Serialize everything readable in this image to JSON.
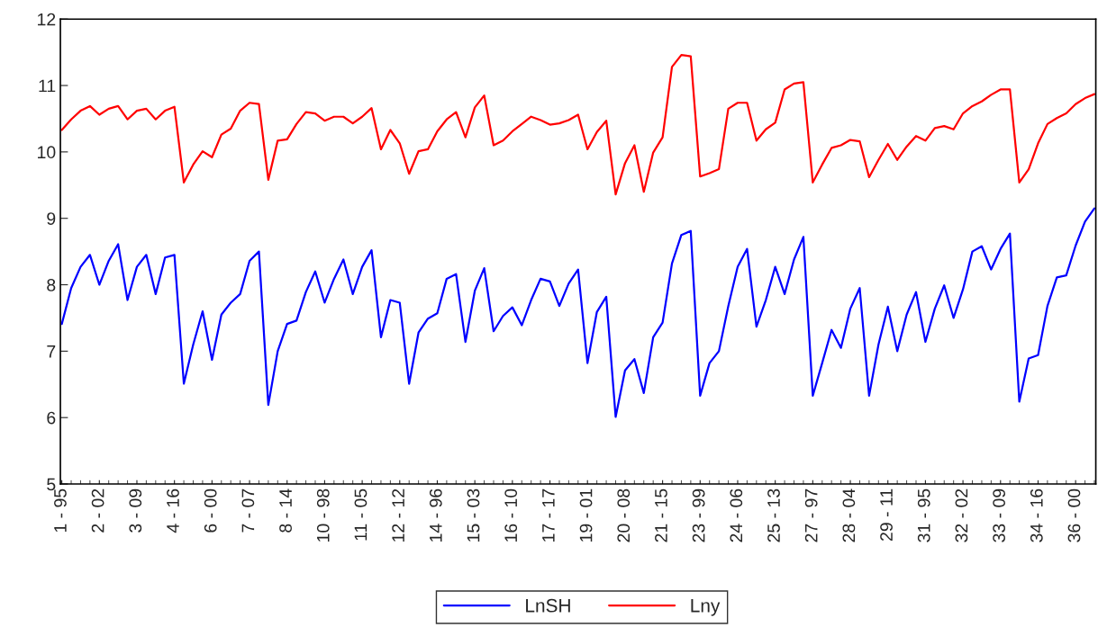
{
  "chart_data": {
    "type": "line",
    "categories": [
      "1 - 95",
      null,
      null,
      null,
      "2 - 02",
      null,
      null,
      null,
      "3 - 09",
      null,
      null,
      null,
      "4 - 16",
      null,
      null,
      null,
      "6 - 00",
      null,
      null,
      null,
      "7 - 07",
      null,
      null,
      null,
      "8 - 14",
      null,
      null,
      null,
      "10 - 98",
      null,
      null,
      null,
      "11 - 05",
      null,
      null,
      null,
      "12 - 12",
      null,
      null,
      null,
      "14 - 96",
      null,
      null,
      null,
      "15 - 03",
      null,
      null,
      null,
      "16 - 10",
      null,
      null,
      null,
      "17 - 17",
      null,
      null,
      null,
      "19 - 01",
      null,
      null,
      null,
      "20 - 08",
      null,
      null,
      null,
      "21 - 15",
      null,
      null,
      null,
      "23 - 99",
      null,
      null,
      null,
      "24 - 06",
      null,
      null,
      null,
      "25 - 13",
      null,
      null,
      null,
      "27 - 97",
      null,
      null,
      null,
      "28 - 04",
      null,
      null,
      null,
      "29 - 11",
      null,
      null,
      null,
      "31 - 95",
      null,
      null,
      null,
      "32 - 02",
      null,
      null,
      null,
      "33 - 09",
      null,
      null,
      null,
      "34 - 16",
      null,
      null,
      null,
      "36 - 00",
      null,
      null
    ],
    "series": [
      {
        "name": "LnSH",
        "color": "#0000ff",
        "values": [
          7.41,
          7.95,
          8.27,
          8.45,
          8.0,
          8.36,
          8.61,
          7.77,
          8.27,
          8.45,
          7.86,
          8.41,
          8.45,
          6.51,
          7.1,
          7.6,
          6.87,
          7.55,
          7.73,
          7.86,
          8.36,
          8.5,
          6.19,
          7.0,
          7.41,
          7.46,
          7.89,
          8.2,
          7.73,
          8.09,
          8.38,
          7.86,
          8.27,
          8.52,
          7.21,
          7.77,
          7.73,
          6.51,
          7.28,
          7.49,
          7.57,
          8.09,
          8.16,
          7.14,
          7.91,
          8.25,
          7.3,
          7.53,
          7.66,
          7.39,
          7.77,
          8.09,
          8.05,
          7.68,
          8.02,
          8.23,
          6.82,
          7.59,
          7.82,
          6.01,
          6.71,
          6.88,
          6.37,
          7.21,
          7.43,
          8.32,
          8.75,
          8.81,
          6.33,
          6.82,
          7.0,
          7.68,
          8.27,
          8.54,
          7.37,
          7.77,
          8.27,
          7.86,
          8.38,
          8.72,
          6.33,
          6.82,
          7.32,
          7.05,
          7.64,
          7.95,
          6.33,
          7.1,
          7.67,
          7.0,
          7.55,
          7.89,
          7.14,
          7.64,
          7.99,
          7.5,
          7.93,
          8.5,
          8.58,
          8.23,
          8.54,
          8.77,
          6.24,
          6.89,
          6.94,
          7.68,
          8.11,
          8.14,
          8.59,
          8.95,
          9.15
        ]
      },
      {
        "name": "Lny",
        "color": "#ff0000",
        "values": [
          10.33,
          10.49,
          10.62,
          10.69,
          10.56,
          10.65,
          10.69,
          10.49,
          10.62,
          10.65,
          10.49,
          10.62,
          10.68,
          9.54,
          9.81,
          10.01,
          9.92,
          10.26,
          10.35,
          10.62,
          10.74,
          10.72,
          9.58,
          10.17,
          10.19,
          10.42,
          10.6,
          10.58,
          10.47,
          10.53,
          10.53,
          10.43,
          10.53,
          10.66,
          10.04,
          10.33,
          10.13,
          9.67,
          10.01,
          10.04,
          10.31,
          10.49,
          10.6,
          10.22,
          10.67,
          10.85,
          10.1,
          10.17,
          10.31,
          10.42,
          10.53,
          10.48,
          10.41,
          10.43,
          10.48,
          10.56,
          10.04,
          10.3,
          10.47,
          9.36,
          9.83,
          10.1,
          9.4,
          9.99,
          10.22,
          11.28,
          11.46,
          11.44,
          9.63,
          9.68,
          9.74,
          10.65,
          10.74,
          10.74,
          10.17,
          10.34,
          10.44,
          10.94,
          11.03,
          11.05,
          9.54,
          9.81,
          10.06,
          10.1,
          10.18,
          10.16,
          9.62,
          9.88,
          10.12,
          9.88,
          10.08,
          10.24,
          10.17,
          10.36,
          10.39,
          10.34,
          10.58,
          10.69,
          10.76,
          10.86,
          10.94,
          10.94,
          9.54,
          9.74,
          10.13,
          10.42,
          10.51,
          10.58,
          10.72,
          10.81,
          10.87
        ]
      }
    ],
    "ylim": [
      5,
      12
    ],
    "yticks": [
      5,
      6,
      7,
      8,
      9,
      10,
      11,
      12
    ],
    "grid": false,
    "legend": "bottom",
    "line_style": "solid",
    "marker": "none"
  }
}
